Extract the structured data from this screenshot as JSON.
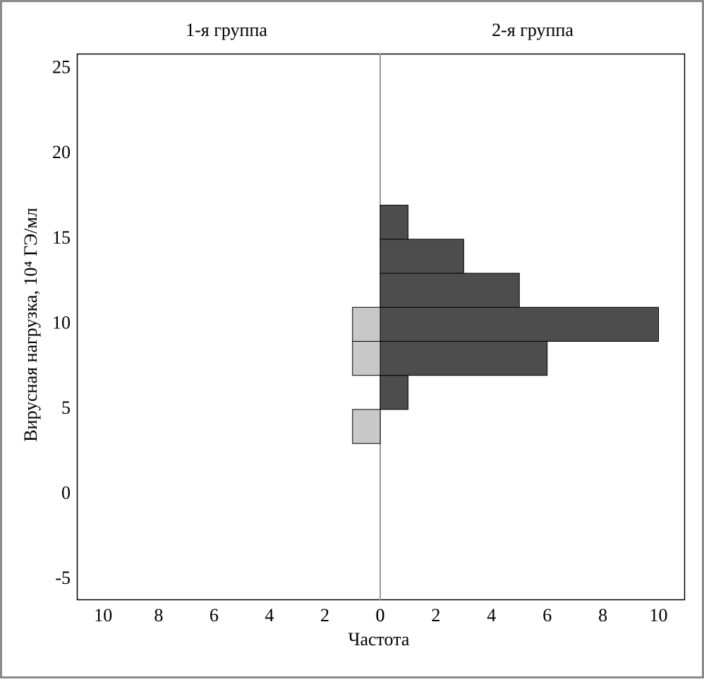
{
  "chart_data": {
    "type": "histogram-back-to-back",
    "ylabel": "Вирусная нагрузка, 10⁴ ГЭ/мл",
    "xlabel": "Частота",
    "bins": [
      3,
      5,
      7,
      9,
      11,
      13,
      15,
      17
    ],
    "series": [
      {
        "name": "1-я группа",
        "side": "left",
        "color": "#c8c8c8",
        "values": [
          1,
          0,
          1,
          1,
          0,
          0,
          0
        ]
      },
      {
        "name": "2-я группа",
        "side": "right",
        "color": "#4d4d4d",
        "values": [
          0,
          1,
          6,
          10,
          5,
          3,
          1
        ]
      }
    ],
    "ylim": [
      -6.2,
      25.9
    ],
    "yticks": [
      -5,
      0,
      5,
      10,
      15,
      20,
      25
    ],
    "xlim": [
      0,
      10.95
    ],
    "xticks": [
      0,
      2,
      4,
      6,
      8,
      10
    ]
  }
}
